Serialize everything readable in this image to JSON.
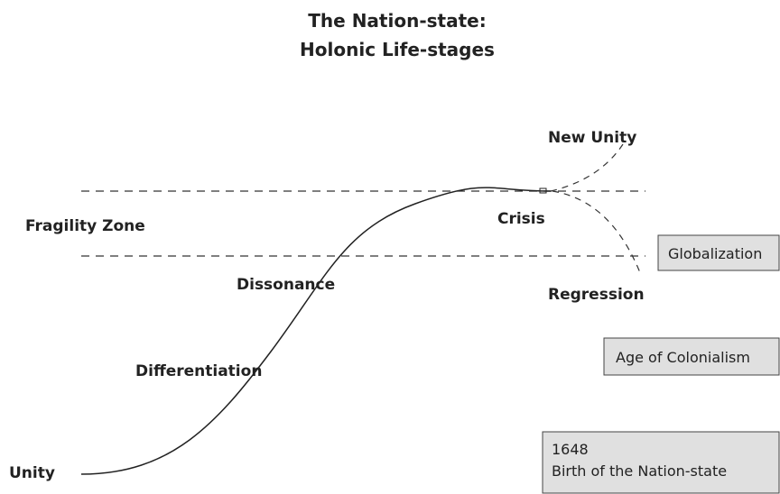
{
  "header": {
    "title_lines": [
      "The Nation-state:",
      "Holonic Life-stages"
    ]
  },
  "labels": {
    "new_unity": "New Unity",
    "fragility_zone": "Fragility Zone",
    "crisis": "Crisis",
    "dissonance": "Dissonance",
    "regression": "Regression",
    "differentiation": "Differentiation",
    "unity": "Unity"
  },
  "boxes": [
    {
      "lines": [
        "Globalization"
      ]
    },
    {
      "lines": [
        "Age of Colonialism"
      ]
    },
    {
      "lines": [
        "1648",
        "Birth of the Nation-state"
      ]
    }
  ]
}
